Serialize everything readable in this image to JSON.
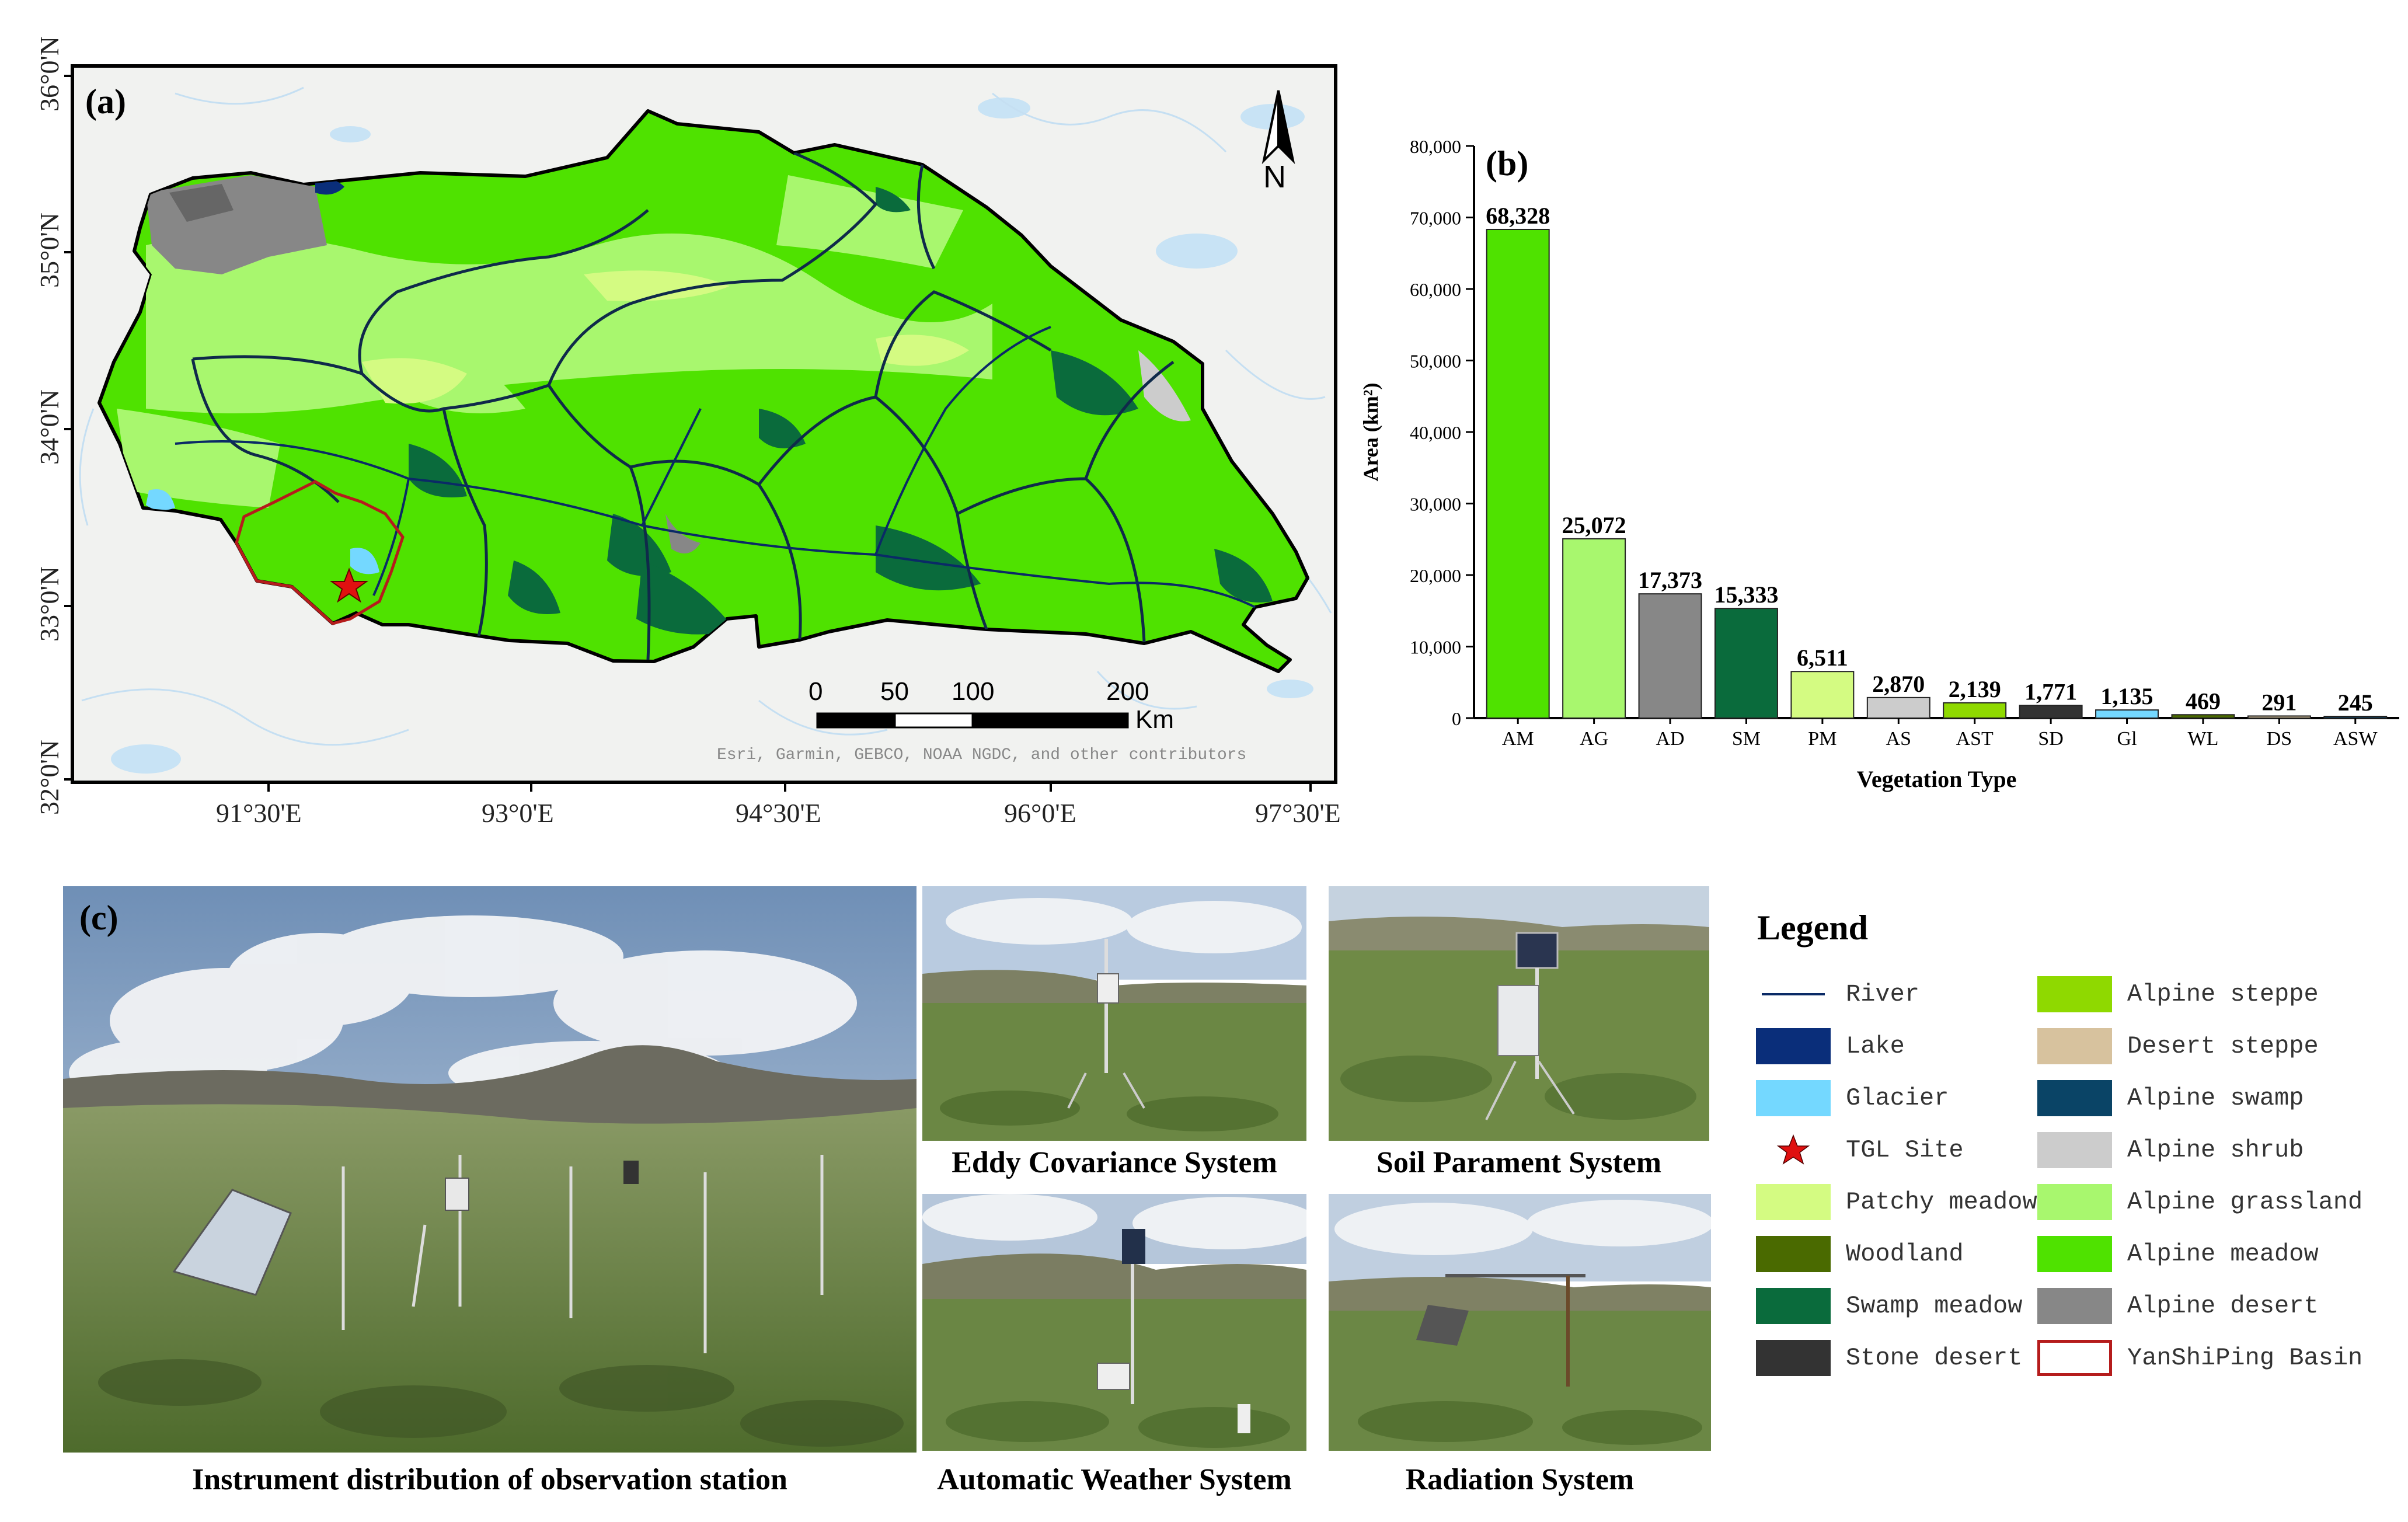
{
  "map": {
    "panel_label": "(a)",
    "lat_labels": [
      "36°0'N",
      "35°0'N",
      "34°0'N",
      "33°0'N",
      "32°0'N"
    ],
    "lon_labels": [
      "91°30'E",
      "93°0'E",
      "94°30'E",
      "96°0'E",
      "97°30'E"
    ],
    "north_label": "N",
    "scale": {
      "ticks": [
        "0",
        "50",
        "100",
        "200"
      ],
      "unit": "Km"
    },
    "attribution": "Esri, Garmin, GEBCO, NOAA NGDC, and other contributors",
    "colors": {
      "alpine_meadow": "#4fe200",
      "alpine_grassland": "#a8f76e",
      "alpine_desert": "#878787",
      "swamp_meadow": "#0a6b3c",
      "patchy_meadow": "#d4fb82",
      "boundary": "#000000",
      "basin_outline": "#b51c1c"
    }
  },
  "chart_data": {
    "type": "bar",
    "panel_label": "(b)",
    "categories": [
      "AM",
      "AG",
      "AD",
      "SM",
      "PM",
      "AS",
      "AST",
      "SD",
      "Gl",
      "WL",
      "DS",
      "ASW"
    ],
    "values": [
      68328,
      25072,
      17373,
      15333,
      6511,
      2870,
      2139,
      1771,
      1135,
      469,
      291,
      245
    ],
    "value_labels": [
      "68,328",
      "25,072",
      "17,373",
      "15,333",
      "6,511",
      "2,870",
      "2,139",
      "1,771",
      "1,135",
      "469",
      "291",
      "245"
    ],
    "colors": [
      "#4fe200",
      "#a8f76e",
      "#878787",
      "#0a6b3c",
      "#d4fb82",
      "#cccccc",
      "#8fd900",
      "#333333",
      "#74d8ff",
      "#4a6a00",
      "#d7c29e",
      "#0a4466"
    ],
    "xlabel": "Vegetation Type",
    "ylabel": "Area (km²)",
    "ylim": [
      0,
      80000
    ],
    "yticks": [
      "0",
      "10,000",
      "20,000",
      "30,000",
      "40,000",
      "50,000",
      "60,000",
      "70,000",
      "80,000"
    ]
  },
  "photos": {
    "panel_label": "(c)",
    "captions": {
      "main": "Instrument distribution of observation station",
      "eddy": "Eddy Covariance System",
      "soil": "Soil Parament System",
      "weather": "Automatic Weather System",
      "radiation": "Radiation System"
    }
  },
  "legend": {
    "title": "Legend",
    "left": [
      {
        "label": "River",
        "kind": "line",
        "color": "#0a2a66"
      },
      {
        "label": "Lake",
        "kind": "fill",
        "color": "#0a2e7a"
      },
      {
        "label": "Glacier",
        "kind": "fill",
        "color": "#74d8ff"
      },
      {
        "label": "TGL Site",
        "kind": "star",
        "color": "#e01010"
      },
      {
        "label": "Patchy meadow",
        "kind": "fill",
        "color": "#d4fb82"
      },
      {
        "label": "Woodland",
        "kind": "fill",
        "color": "#4a6a00"
      },
      {
        "label": "Swamp meadow",
        "kind": "fill",
        "color": "#0a6b3c"
      },
      {
        "label": "Stone desert",
        "kind": "fill",
        "color": "#333333"
      }
    ],
    "right": [
      {
        "label": "Alpine steppe",
        "kind": "fill",
        "color": "#8fd900"
      },
      {
        "label": "Desert steppe",
        "kind": "fill",
        "color": "#d7c29e"
      },
      {
        "label": "Alpine swamp",
        "kind": "fill",
        "color": "#0a4466"
      },
      {
        "label": "Alpine shrub",
        "kind": "fill",
        "color": "#cccccc"
      },
      {
        "label": "Alpine grassland",
        "kind": "fill",
        "color": "#a8f76e"
      },
      {
        "label": "Alpine meadow",
        "kind": "fill",
        "color": "#4fe200"
      },
      {
        "label": "Alpine desert",
        "kind": "fill",
        "color": "#878787"
      },
      {
        "label": "YanShiPing Basin",
        "kind": "outline",
        "color": "#b51c1c"
      }
    ]
  }
}
